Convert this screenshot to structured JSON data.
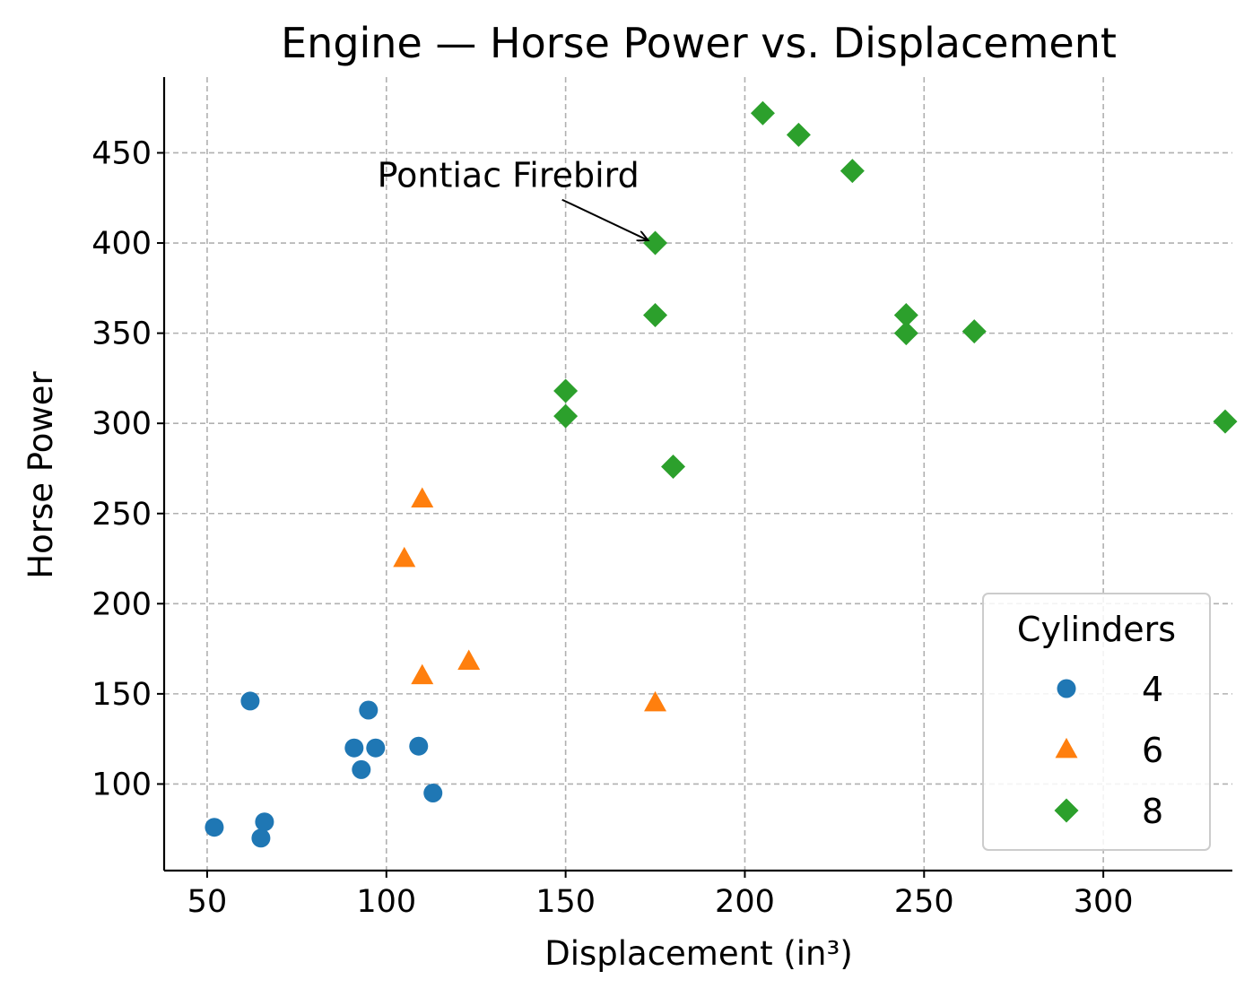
{
  "chart_data": {
    "type": "scatter",
    "title": "Engine — Horse Power vs. Displacement",
    "xlabel": "Displacement (in³)",
    "ylabel": "Horse Power",
    "xlim": [
      38,
      336
    ],
    "ylim": [
      52,
      492
    ],
    "xticks": [
      50,
      100,
      150,
      200,
      250,
      300
    ],
    "yticks": [
      100,
      150,
      200,
      250,
      300,
      350,
      400,
      450
    ],
    "grid": true,
    "legend": {
      "title": "Cylinders",
      "placement": "bottom-right"
    },
    "series": [
      {
        "name": "4",
        "marker": "circle",
        "color": "#1f77b4",
        "points": [
          {
            "x": 52,
            "y": 76
          },
          {
            "x": 62,
            "y": 146
          },
          {
            "x": 65,
            "y": 70
          },
          {
            "x": 66,
            "y": 79
          },
          {
            "x": 91,
            "y": 120
          },
          {
            "x": 93,
            "y": 108
          },
          {
            "x": 95,
            "y": 141
          },
          {
            "x": 97,
            "y": 120
          },
          {
            "x": 109,
            "y": 121
          },
          {
            "x": 113,
            "y": 95
          }
        ]
      },
      {
        "name": "6",
        "marker": "triangle",
        "color": "#ff7f0e",
        "points": [
          {
            "x": 105,
            "y": 225
          },
          {
            "x": 110,
            "y": 258
          },
          {
            "x": 110,
            "y": 160
          },
          {
            "x": 123,
            "y": 168
          },
          {
            "x": 175,
            "y": 145
          }
        ]
      },
      {
        "name": "8",
        "marker": "diamond",
        "color": "#2ca02c",
        "points": [
          {
            "x": 150,
            "y": 318
          },
          {
            "x": 150,
            "y": 304
          },
          {
            "x": 175,
            "y": 400
          },
          {
            "x": 175,
            "y": 360
          },
          {
            "x": 180,
            "y": 276
          },
          {
            "x": 205,
            "y": 472
          },
          {
            "x": 215,
            "y": 460
          },
          {
            "x": 230,
            "y": 440
          },
          {
            "x": 245,
            "y": 360
          },
          {
            "x": 245,
            "y": 350
          },
          {
            "x": 264,
            "y": 351
          },
          {
            "x": 334,
            "y": 301
          }
        ]
      }
    ],
    "annotations": [
      {
        "text": "Pontiac Firebird",
        "x": 175,
        "y": 400,
        "text_x": 134,
        "text_y": 428
      }
    ]
  }
}
